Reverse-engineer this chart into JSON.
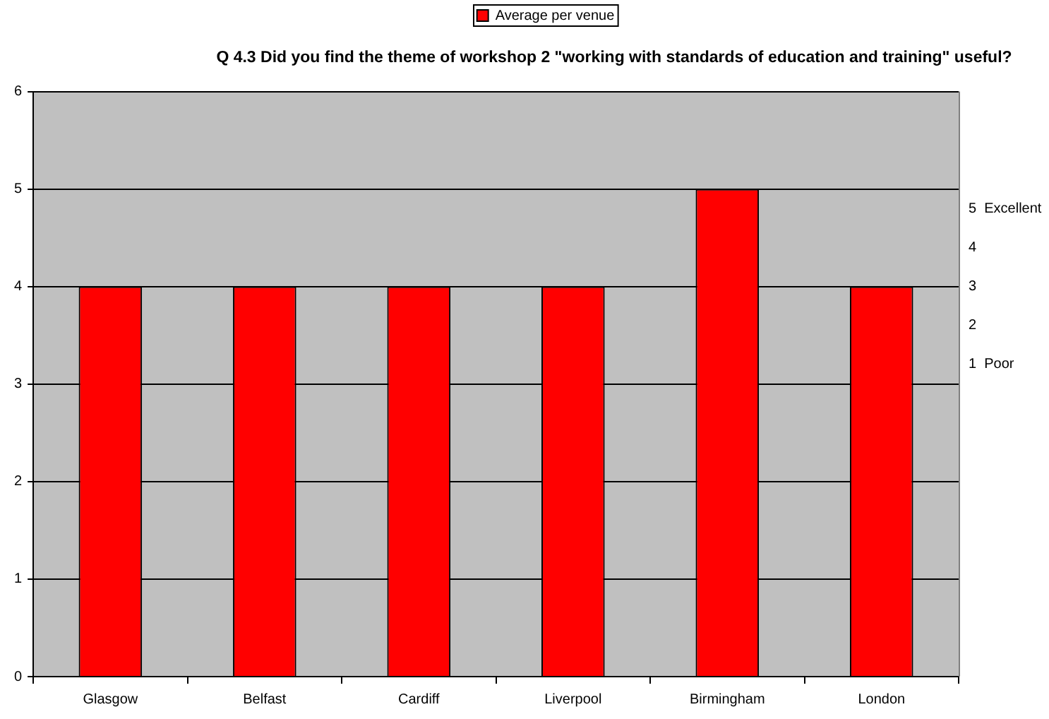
{
  "chart_data": {
    "type": "bar",
    "title": "Q 4.3 Did you find the theme of workshop 2 \"working with standards of education and training\" useful?",
    "categories": [
      "Glasgow",
      "Belfast",
      "Cardiff",
      "Liverpool",
      "Birmingham",
      "London"
    ],
    "series": [
      {
        "name": "Average per venue",
        "color": "#ff0000",
        "values": [
          4,
          4,
          4,
          4,
          5,
          4
        ]
      }
    ],
    "ylim": [
      0,
      6
    ],
    "yticks": [
      0,
      1,
      2,
      3,
      4,
      5,
      6
    ],
    "grid": "y",
    "legend": "top",
    "annotations": [
      "5  Excellent",
      "4",
      "3",
      "2",
      "1  Poor"
    ]
  }
}
